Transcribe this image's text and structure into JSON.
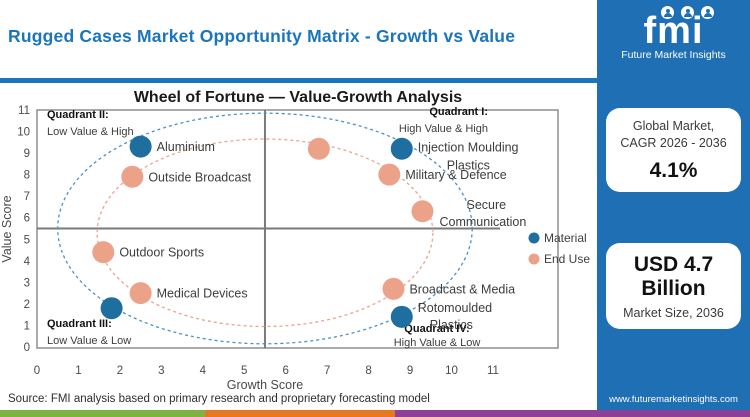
{
  "header": {
    "title": "Rugged Cases Market Opportunity Matrix - Growth vs Value"
  },
  "logo": {
    "brand": "fmi",
    "caption": "Future Market Insights",
    "icons": [
      "person-icon",
      "person-icon",
      "person-icon"
    ]
  },
  "sidebar": {
    "box1": {
      "line1": "Global Market,",
      "line2": "CAGR 2026 - 2036",
      "value": "4.1%"
    },
    "box2": {
      "value_line1": "USD 4.7",
      "value_line2": "Billion",
      "caption": "Market Size, 2036"
    },
    "website": "www.futuremarketinsights.com"
  },
  "footer": {
    "source": "Source: FMI analysis based on primary research and proprietary forecasting model"
  },
  "colors": {
    "brand_blue": "#1b75bc",
    "sidebar_blue": "#1e6fb4",
    "material_blue": "#1e6ea0",
    "end_use_salmon": "#eca189",
    "ellipse_blue": "#4b90c5",
    "ellipse_salmon": "#eaa28e",
    "bar_green": "#7db342",
    "bar_orange": "#e87722",
    "bar_purple": "#8e3f97"
  },
  "chart_data": {
    "type": "scatter",
    "title": "Wheel of Fortune — Value-Growth Analysis",
    "xlabel": "Growth Score",
    "ylabel": "Value Score",
    "xlim": [
      0,
      12.5
    ],
    "ylim": [
      0,
      11
    ],
    "xticks": [
      0,
      1,
      2,
      3,
      4,
      5,
      6,
      7,
      8,
      9,
      10,
      11
    ],
    "yticks": [
      0,
      1,
      2,
      3,
      4,
      5,
      6,
      7,
      8,
      9,
      10,
      11
    ],
    "grid": false,
    "quadrant_divider": {
      "x": 5.5,
      "y": 5.5
    },
    "quadrants": [
      {
        "id": "II",
        "title": "Quadrant II:",
        "desc": "Low Value & High",
        "corner": "top-left"
      },
      {
        "id": "I",
        "title": "Quadrant I:",
        "desc": "High Value & High",
        "corner": "top-right"
      },
      {
        "id": "III",
        "title": "Quadrant III:",
        "desc": "Low Value & Low",
        "corner": "bottom-left"
      },
      {
        "id": "IV",
        "title": "Quadrant IV:",
        "desc": "High Value & Low",
        "corner": "bottom-right"
      }
    ],
    "series": [
      {
        "name": "Material",
        "color": "#1e6ea0",
        "points": [
          {
            "x": 2.5,
            "y": 9.3,
            "label": "Aluminium"
          },
          {
            "x": 8.8,
            "y": 9.2,
            "label": "Injection Moulding Plastics",
            "label_lines": [
              {
                "text": "Injection Moulding",
                "dx": 16,
                "dy": 3
              },
              {
                "text": "Plastics",
                "dx": 45,
                "dy": 21
              }
            ]
          },
          {
            "x": 8.8,
            "y": 1.4,
            "label": "Rotomoulded Plastics",
            "label_lines": [
              {
                "text": "Rotomoulded",
                "dx": 16,
                "dy": -5
              },
              {
                "text": "Plastics",
                "dx": 28,
                "dy": 12
              }
            ]
          },
          {
            "x": 1.8,
            "y": 1.8,
            "label": ""
          }
        ]
      },
      {
        "name": "End Use",
        "color": "#eca189",
        "points": [
          {
            "x": 2.3,
            "y": 7.9,
            "label": "Outside Broadcast"
          },
          {
            "x": 6.8,
            "y": 9.2,
            "label": ""
          },
          {
            "x": 8.5,
            "y": 8.0,
            "label": "Military & Defence"
          },
          {
            "x": 9.3,
            "y": 6.3,
            "label": "Secure Communication",
            "label_lines": [
              {
                "text": "Secure",
                "dx": 44,
                "dy": -2
              },
              {
                "text": "Communication",
                "dx": 17,
                "dy": 15
              }
            ]
          },
          {
            "x": 1.6,
            "y": 4.4,
            "label": "Outdoor Sports"
          },
          {
            "x": 2.5,
            "y": 2.5,
            "label": "Medical Devices"
          },
          {
            "x": 8.6,
            "y": 2.7,
            "label": "Broadcast & Media"
          }
        ]
      }
    ],
    "ellipses": [
      {
        "series": "Material",
        "cx": 5.5,
        "cy": 5.5,
        "rx": 5.0,
        "ry": 5.35,
        "style": "dashed",
        "color": "#4b90c5"
      },
      {
        "series": "End Use",
        "cx": 5.5,
        "cy": 5.3,
        "rx": 4.05,
        "ry": 4.35,
        "style": "dashed",
        "color": "#eaa28e"
      }
    ],
    "legend": {
      "position": "right",
      "entries": [
        "Material",
        "End Use"
      ]
    }
  }
}
